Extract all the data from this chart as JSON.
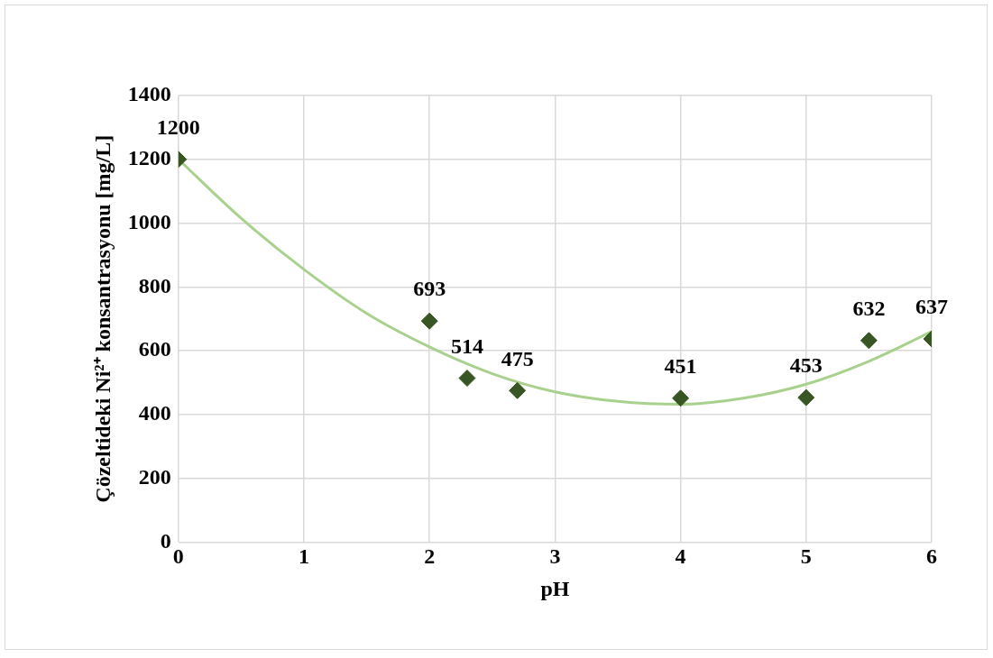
{
  "chart_data": {
    "type": "scatter",
    "xlabel": "pH",
    "ylabel": "Çözeltideki Ni²⁺ konsantrasyonu [mg/L]",
    "xlim": [
      0,
      6
    ],
    "xticks": [
      0,
      1,
      2,
      3,
      4,
      5,
      6
    ],
    "ylim": [
      0,
      1400
    ],
    "yticks": [
      0,
      200,
      400,
      600,
      800,
      1000,
      1200,
      1400
    ],
    "grid": true,
    "legend": false,
    "marker": "diamond",
    "series": [
      {
        "color": "#375623",
        "x": [
          0,
          2,
          2.3,
          2.7,
          4,
          5,
          5.5,
          6
        ],
        "values": [
          1200,
          693,
          514,
          475,
          451,
          453,
          632,
          637
        ],
        "value_labels": [
          "1200",
          "693",
          "514",
          "475",
          "451",
          "453",
          "632",
          "637"
        ]
      },
      {
        "type": "line",
        "color": "#a9d18e",
        "marker": "none",
        "x": [
          0,
          0.5,
          1,
          1.5,
          2,
          2.5,
          3,
          3.5,
          4,
          4.5,
          5,
          5.5,
          6
        ],
        "values": [
          1200,
          1015,
          855,
          717,
          612,
          528,
          471,
          441,
          432,
          451,
          495,
          567,
          660
        ]
      }
    ]
  }
}
